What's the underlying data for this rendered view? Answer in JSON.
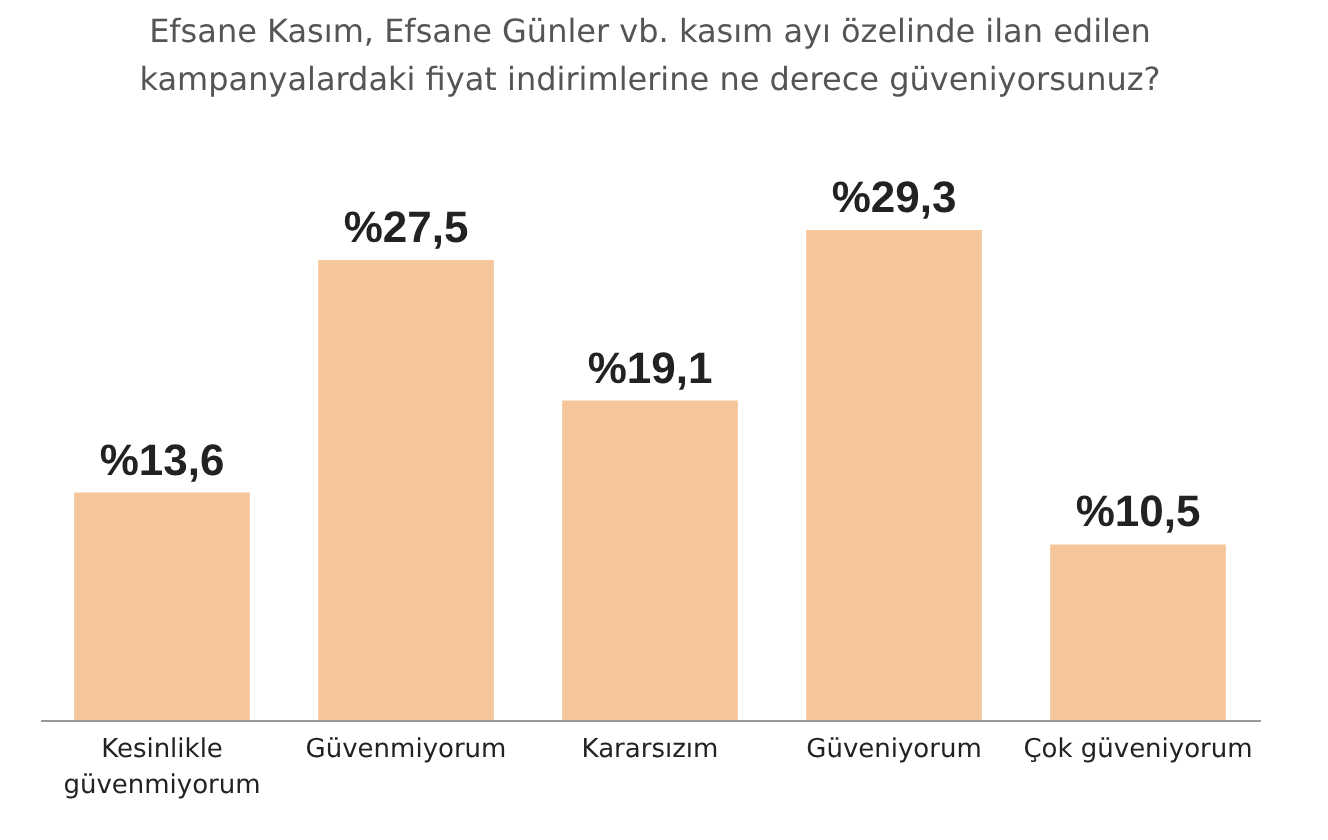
{
  "chart_data": {
    "type": "bar",
    "title": "Efsane Kasım, Efsane Günler vb. kasım ayı özelinde ilan edilen kampanyalardaki fiyat indirimlerine ne derece güveniyorsunuz?",
    "categories": [
      "Kesinlikle güvenmiyorum",
      "Güvenmiyorum",
      "Kararsızım",
      "Güveniyorum",
      "Çok güveniyorum"
    ],
    "values": [
      13.6,
      27.5,
      19.1,
      29.3,
      10.5
    ],
    "value_labels": [
      "%13,6",
      "%27,5",
      "%19,1",
      "%29,3",
      "%10,5"
    ],
    "color": "#f6c69b"
  }
}
